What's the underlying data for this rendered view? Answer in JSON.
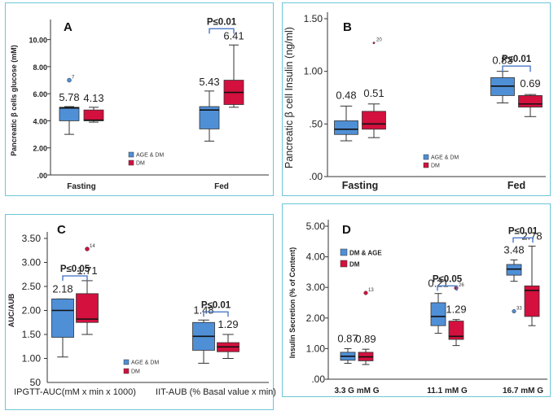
{
  "colors": {
    "group1": "#4f8fd6",
    "group2": "#d3103e",
    "bracket": "#4a78c8",
    "panel_border": "#6cc6d6"
  },
  "legend": {
    "group1_AC": "AGE & DM",
    "group2": "DM",
    "group1_D": "DM & AGE"
  },
  "chart_data": [
    {
      "type": "box",
      "panel": "A",
      "title": "A",
      "ylabel": "Pancreatic β cells glucose (mM)",
      "ylim": [
        0,
        11
      ],
      "ytick_values": [
        0,
        2,
        4,
        6,
        8,
        10
      ],
      "ytick_labels": [
        ".00",
        "2.00",
        "4.00",
        "6.00",
        "8.00",
        "10.00"
      ],
      "categories": [
        "Fasting",
        "Fed"
      ],
      "series": [
        {
          "name": "AGE & DM",
          "boxes": [
            {
              "min": 3.0,
              "q1": 4.0,
              "median": 4.95,
              "q3": 5.0,
              "max": 5.05,
              "label": "5.78",
              "outliers": [
                {
                  "value": 7.0,
                  "id": "7"
                }
              ]
            },
            {
              "min": 2.5,
              "q1": 3.4,
              "median": 4.8,
              "q3": 5.05,
              "max": 6.2,
              "label": "5.43",
              "outliers": []
            }
          ]
        },
        {
          "name": "DM",
          "boxes": [
            {
              "min": 3.9,
              "q1": 4.0,
              "median": 4.05,
              "q3": 4.8,
              "max": 5.0,
              "label": "4.13",
              "outliers": []
            },
            {
              "min": 5.0,
              "q1": 5.2,
              "median": 6.1,
              "q3": 7.0,
              "max": 9.6,
              "label": "6.41",
              "outliers": []
            }
          ]
        }
      ],
      "significance": [
        {
          "category": "Fed",
          "label": "P≤0.01",
          "y": 10.8
        }
      ]
    },
    {
      "type": "box",
      "panel": "B",
      "title": "B",
      "ylabel": "Pancreatic β cell Insulin (ng/ml)",
      "ylim": [
        0,
        1.5
      ],
      "ytick_values": [
        0,
        0.5,
        1.0,
        1.5
      ],
      "ytick_labels": [
        ".00",
        ".50",
        "1.00",
        "1.50"
      ],
      "categories": [
        "Fasting",
        "Fed"
      ],
      "series": [
        {
          "name": "AGE & DM",
          "boxes": [
            {
              "min": 0.34,
              "q1": 0.4,
              "median": 0.45,
              "q3": 0.53,
              "max": 0.67,
              "label": "0.48",
              "outliers": []
            },
            {
              "min": 0.7,
              "q1": 0.77,
              "median": 0.86,
              "q3": 0.94,
              "max": 1.0,
              "label": "0.83",
              "outliers": []
            }
          ]
        },
        {
          "name": "DM",
          "boxes": [
            {
              "min": 0.37,
              "q1": 0.45,
              "median": 0.5,
              "q3": 0.62,
              "max": 0.69,
              "label": "0.51",
              "outliers": [
                {
                  "value": 1.27,
                  "id": "20"
                }
              ]
            },
            {
              "min": 0.57,
              "q1": 0.66,
              "median": 0.69,
              "q3": 0.77,
              "max": 0.78,
              "label": "0.69",
              "outliers": []
            }
          ]
        }
      ],
      "significance": [
        {
          "category": "Fed",
          "label": "P≤0.01",
          "y": 1.05
        }
      ]
    },
    {
      "type": "box",
      "panel": "C",
      "title": "C",
      "ylabel": "AUC/AUB",
      "ylim": [
        0.5,
        3.5
      ],
      "ytick_values": [
        1.0,
        1.5,
        2.0,
        2.5,
        3.0,
        3.5
      ],
      "ytick_labels": [
        "1.00",
        "1.50",
        "2.00",
        "2.50",
        "3.00",
        "3.50"
      ],
      "ybottom_label": "50",
      "categories": [
        "IPGTT-AUC(mM x min x 1000)",
        "IIT-AUB (% Basal value x min)"
      ],
      "series": [
        {
          "name": "AGE & DM",
          "boxes": [
            {
              "min": 1.03,
              "q1": 1.44,
              "median": 2.0,
              "q3": 2.24,
              "max": 2.24,
              "label": "2.18",
              "outliers": []
            },
            {
              "min": 0.9,
              "q1": 1.17,
              "median": 1.46,
              "q3": 1.75,
              "max": 1.8,
              "label": "1.48",
              "outliers": []
            }
          ]
        },
        {
          "name": "DM",
          "boxes": [
            {
              "min": 1.5,
              "q1": 1.75,
              "median": 1.82,
              "q3": 2.35,
              "max": 2.62,
              "label": "1.71",
              "outliers": [
                {
                  "value": 3.28,
                  "id": "14"
                }
              ]
            },
            {
              "min": 1.0,
              "q1": 1.14,
              "median": 1.24,
              "q3": 1.33,
              "max": 1.5,
              "label": "1.29",
              "outliers": []
            }
          ]
        }
      ],
      "significance": [
        {
          "category": "IPGTT-AUC(mM x min x 1000)",
          "label": "P≤0.05",
          "y": 2.72
        },
        {
          "category": "IIT-AUB (% Basal value x min)",
          "label": "P≤0.01",
          "y": 1.97
        }
      ]
    },
    {
      "type": "box",
      "panel": "D",
      "title": "D",
      "ylabel": "Insulin Secretion (% of Content)",
      "ylim": [
        0,
        5
      ],
      "ytick_values": [
        0,
        1,
        2,
        3,
        4,
        5
      ],
      "ytick_labels": [
        ".00",
        "1.00",
        "2.00",
        "3.00",
        "4.00",
        "5.00"
      ],
      "categories": [
        "3.3 G mM G",
        "11.1 mM G",
        "16.7 mM G"
      ],
      "series": [
        {
          "name": "DM & AGE",
          "boxes": [
            {
              "min": 0.52,
              "q1": 0.62,
              "median": 0.75,
              "q3": 0.88,
              "max": 1.0,
              "label": "0.87",
              "outliers": []
            },
            {
              "min": 1.5,
              "q1": 1.75,
              "median": 2.05,
              "q3": 2.5,
              "max": 2.8,
              "label": "0.21",
              "outliers": []
            },
            {
              "min": 3.2,
              "q1": 3.4,
              "median": 3.6,
              "q3": 3.75,
              "max": 3.9,
              "label": "3.48",
              "outliers": [
                {
                  "value": 2.22,
                  "id": "33"
                }
              ]
            }
          ]
        },
        {
          "name": "DM",
          "boxes": [
            {
              "min": 0.48,
              "q1": 0.6,
              "median": 0.73,
              "q3": 0.88,
              "max": 0.98,
              "label": "0.89",
              "outliers": [
                {
                  "value": 2.82,
                  "id": "13"
                }
              ]
            },
            {
              "min": 1.1,
              "q1": 1.3,
              "median": 1.4,
              "q3": 1.9,
              "max": 1.95,
              "label": "1.29",
              "outliers": [
                {
                  "value": 2.98,
                  "id": "26"
                }
              ]
            },
            {
              "min": 1.75,
              "q1": 2.05,
              "median": 2.9,
              "q3": 3.05,
              "max": 4.35,
              "label": "2.78",
              "outliers": []
            }
          ]
        }
      ],
      "significance": [
        {
          "category": "11.1 mM G",
          "label": "P≤0.05",
          "y": 3.05
        },
        {
          "category": "16.7 mM G",
          "label": "P≤0.01",
          "y": 4.62
        }
      ]
    }
  ]
}
